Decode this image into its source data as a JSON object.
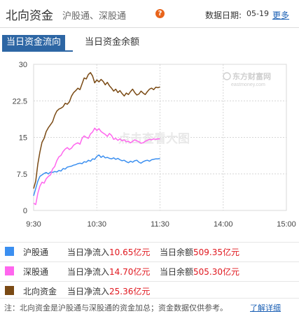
{
  "header": {
    "title": "北向资金",
    "links": [
      "沪股通",
      "深股通"
    ],
    "separator": "、",
    "help_glyph": "?",
    "date_label": "数据日期:",
    "date_value": "05-19",
    "more_label": "更多"
  },
  "tabs": [
    {
      "label": "当日资金流向",
      "active": true
    },
    {
      "label": "当日资金余额",
      "active": false
    }
  ],
  "chart_data": {
    "type": "line",
    "title": "",
    "xlabel": "",
    "ylabel": "",
    "x_ticks": [
      "9:30",
      "10:30",
      "11:30",
      "14:00",
      "15:00"
    ],
    "y_ticks": [
      "0",
      "7.5",
      "15",
      "22.5",
      "30"
    ],
    "ylim": [
      0,
      30
    ],
    "x_range_minutes": [
      0,
      240
    ],
    "grid": true,
    "watermark_brand": "东方财富网",
    "watermark_url": "eastmoney.com",
    "watermark_center": "点击查看大图",
    "series": [
      {
        "name": "沪股通",
        "color": "#3b8ff0",
        "x": [
          0,
          2,
          4,
          6,
          8,
          10,
          12,
          14,
          16,
          18,
          20,
          22,
          24,
          26,
          28,
          30,
          32,
          34,
          36,
          38,
          40,
          42,
          44,
          46,
          48,
          50,
          52,
          54,
          56,
          58,
          60,
          62,
          64,
          66,
          68,
          70,
          72,
          74,
          76,
          78,
          80,
          82,
          84,
          86,
          88,
          90,
          92,
          94,
          96,
          98,
          100,
          102,
          104,
          106,
          108,
          110,
          112,
          114,
          116,
          118,
          120
        ],
        "values": [
          3.0,
          4.5,
          6.0,
          7.0,
          7.3,
          7.6,
          7.8,
          7.5,
          7.9,
          7.8,
          8.0,
          7.9,
          8.2,
          8.1,
          8.6,
          8.5,
          8.9,
          9.0,
          9.1,
          9.3,
          9.4,
          9.6,
          9.7,
          9.6,
          10.0,
          9.9,
          10.3,
          10.1,
          10.6,
          10.5,
          11.1,
          11.4,
          10.9,
          11.2,
          10.8,
          10.9,
          10.7,
          10.6,
          10.8,
          10.5,
          10.7,
          10.4,
          10.2,
          10.3,
          10.0,
          9.8,
          10.1,
          9.9,
          10.2,
          10.3,
          9.9,
          9.7,
          10.0,
          10.2,
          10.3,
          10.1,
          10.4,
          10.5,
          10.6,
          10.6,
          10.65
        ]
      },
      {
        "name": "深股通",
        "color": "#ff66ee",
        "x": [
          0,
          2,
          4,
          6,
          8,
          10,
          12,
          14,
          16,
          18,
          20,
          22,
          24,
          26,
          28,
          30,
          32,
          34,
          36,
          38,
          40,
          42,
          44,
          46,
          48,
          50,
          52,
          54,
          56,
          58,
          60,
          62,
          64,
          66,
          68,
          70,
          72,
          74,
          76,
          78,
          80,
          82,
          84,
          86,
          88,
          90,
          92,
          94,
          96,
          98,
          100,
          102,
          104,
          106,
          108,
          110,
          112,
          114,
          116,
          118,
          120
        ],
        "values": [
          1.5,
          1.2,
          3.5,
          5.0,
          5.8,
          5.6,
          6.5,
          7.0,
          7.3,
          8.5,
          9.0,
          10.2,
          11.0,
          11.3,
          12.1,
          12.6,
          12.9,
          12.5,
          12.8,
          13.4,
          13.7,
          13.9,
          13.6,
          14.8,
          15.3,
          15.0,
          14.8,
          15.7,
          16.1,
          16.9,
          16.4,
          16.8,
          16.2,
          15.9,
          15.6,
          15.2,
          15.8,
          15.4,
          14.6,
          14.8,
          14.4,
          14.7,
          14.3,
          14.5,
          14.1,
          14.2,
          13.9,
          14.2,
          14.5,
          14.3,
          14.1,
          13.8,
          13.9,
          14.2,
          14.4,
          14.6,
          14.5,
          14.7,
          14.6,
          14.7,
          14.7
        ]
      },
      {
        "name": "北向资金",
        "color": "#7a4a14",
        "x": [
          0,
          2,
          4,
          6,
          8,
          10,
          12,
          14,
          16,
          18,
          20,
          22,
          24,
          26,
          28,
          30,
          32,
          34,
          36,
          38,
          40,
          42,
          44,
          46,
          48,
          50,
          52,
          54,
          56,
          58,
          60,
          62,
          64,
          66,
          68,
          70,
          72,
          74,
          76,
          78,
          80,
          82,
          84,
          86,
          88,
          90,
          92,
          94,
          96,
          98,
          100,
          102,
          104,
          106,
          108,
          110,
          112,
          114,
          116,
          118,
          120
        ],
        "values": [
          4.5,
          6.0,
          9.5,
          12.0,
          14.0,
          14.8,
          16.2,
          17.0,
          17.6,
          18.2,
          19.5,
          20.4,
          20.8,
          21.0,
          21.3,
          22.0,
          21.8,
          22.3,
          23.5,
          24.2,
          24.6,
          25.1,
          24.8,
          26.0,
          27.2,
          27.0,
          27.9,
          28.3,
          27.6,
          26.2,
          26.8,
          26.4,
          26.9,
          26.5,
          25.8,
          26.3,
          25.6,
          25.1,
          24.5,
          24.9,
          24.2,
          24.6,
          24.0,
          23.5,
          24.1,
          23.8,
          24.4,
          24.9,
          24.2,
          23.7,
          23.9,
          24.5,
          24.1,
          23.8,
          24.4,
          24.9,
          25.1,
          24.8,
          25.3,
          25.2,
          25.36
        ]
      }
    ]
  },
  "legend": [
    {
      "name": "沪股通",
      "color": "#3b8ff0",
      "flow_label": "当日净流入",
      "flow_value": "10.65亿元",
      "balance_label": "当日余额",
      "balance_value": "509.35亿元"
    },
    {
      "name": "深股通",
      "color": "#ff66ee",
      "flow_label": "当日净流入",
      "flow_value": "14.70亿元",
      "balance_label": "当日余额",
      "balance_value": "505.30亿元"
    },
    {
      "name": "北向资金",
      "color": "#7a4a14",
      "flow_label": "当日净流入",
      "flow_value": "25.36亿元"
    }
  ],
  "note": {
    "text": "注：北向资金是沪股通与深股通的资金加总；资金数据仅供参考。",
    "link": "了解详细"
  }
}
